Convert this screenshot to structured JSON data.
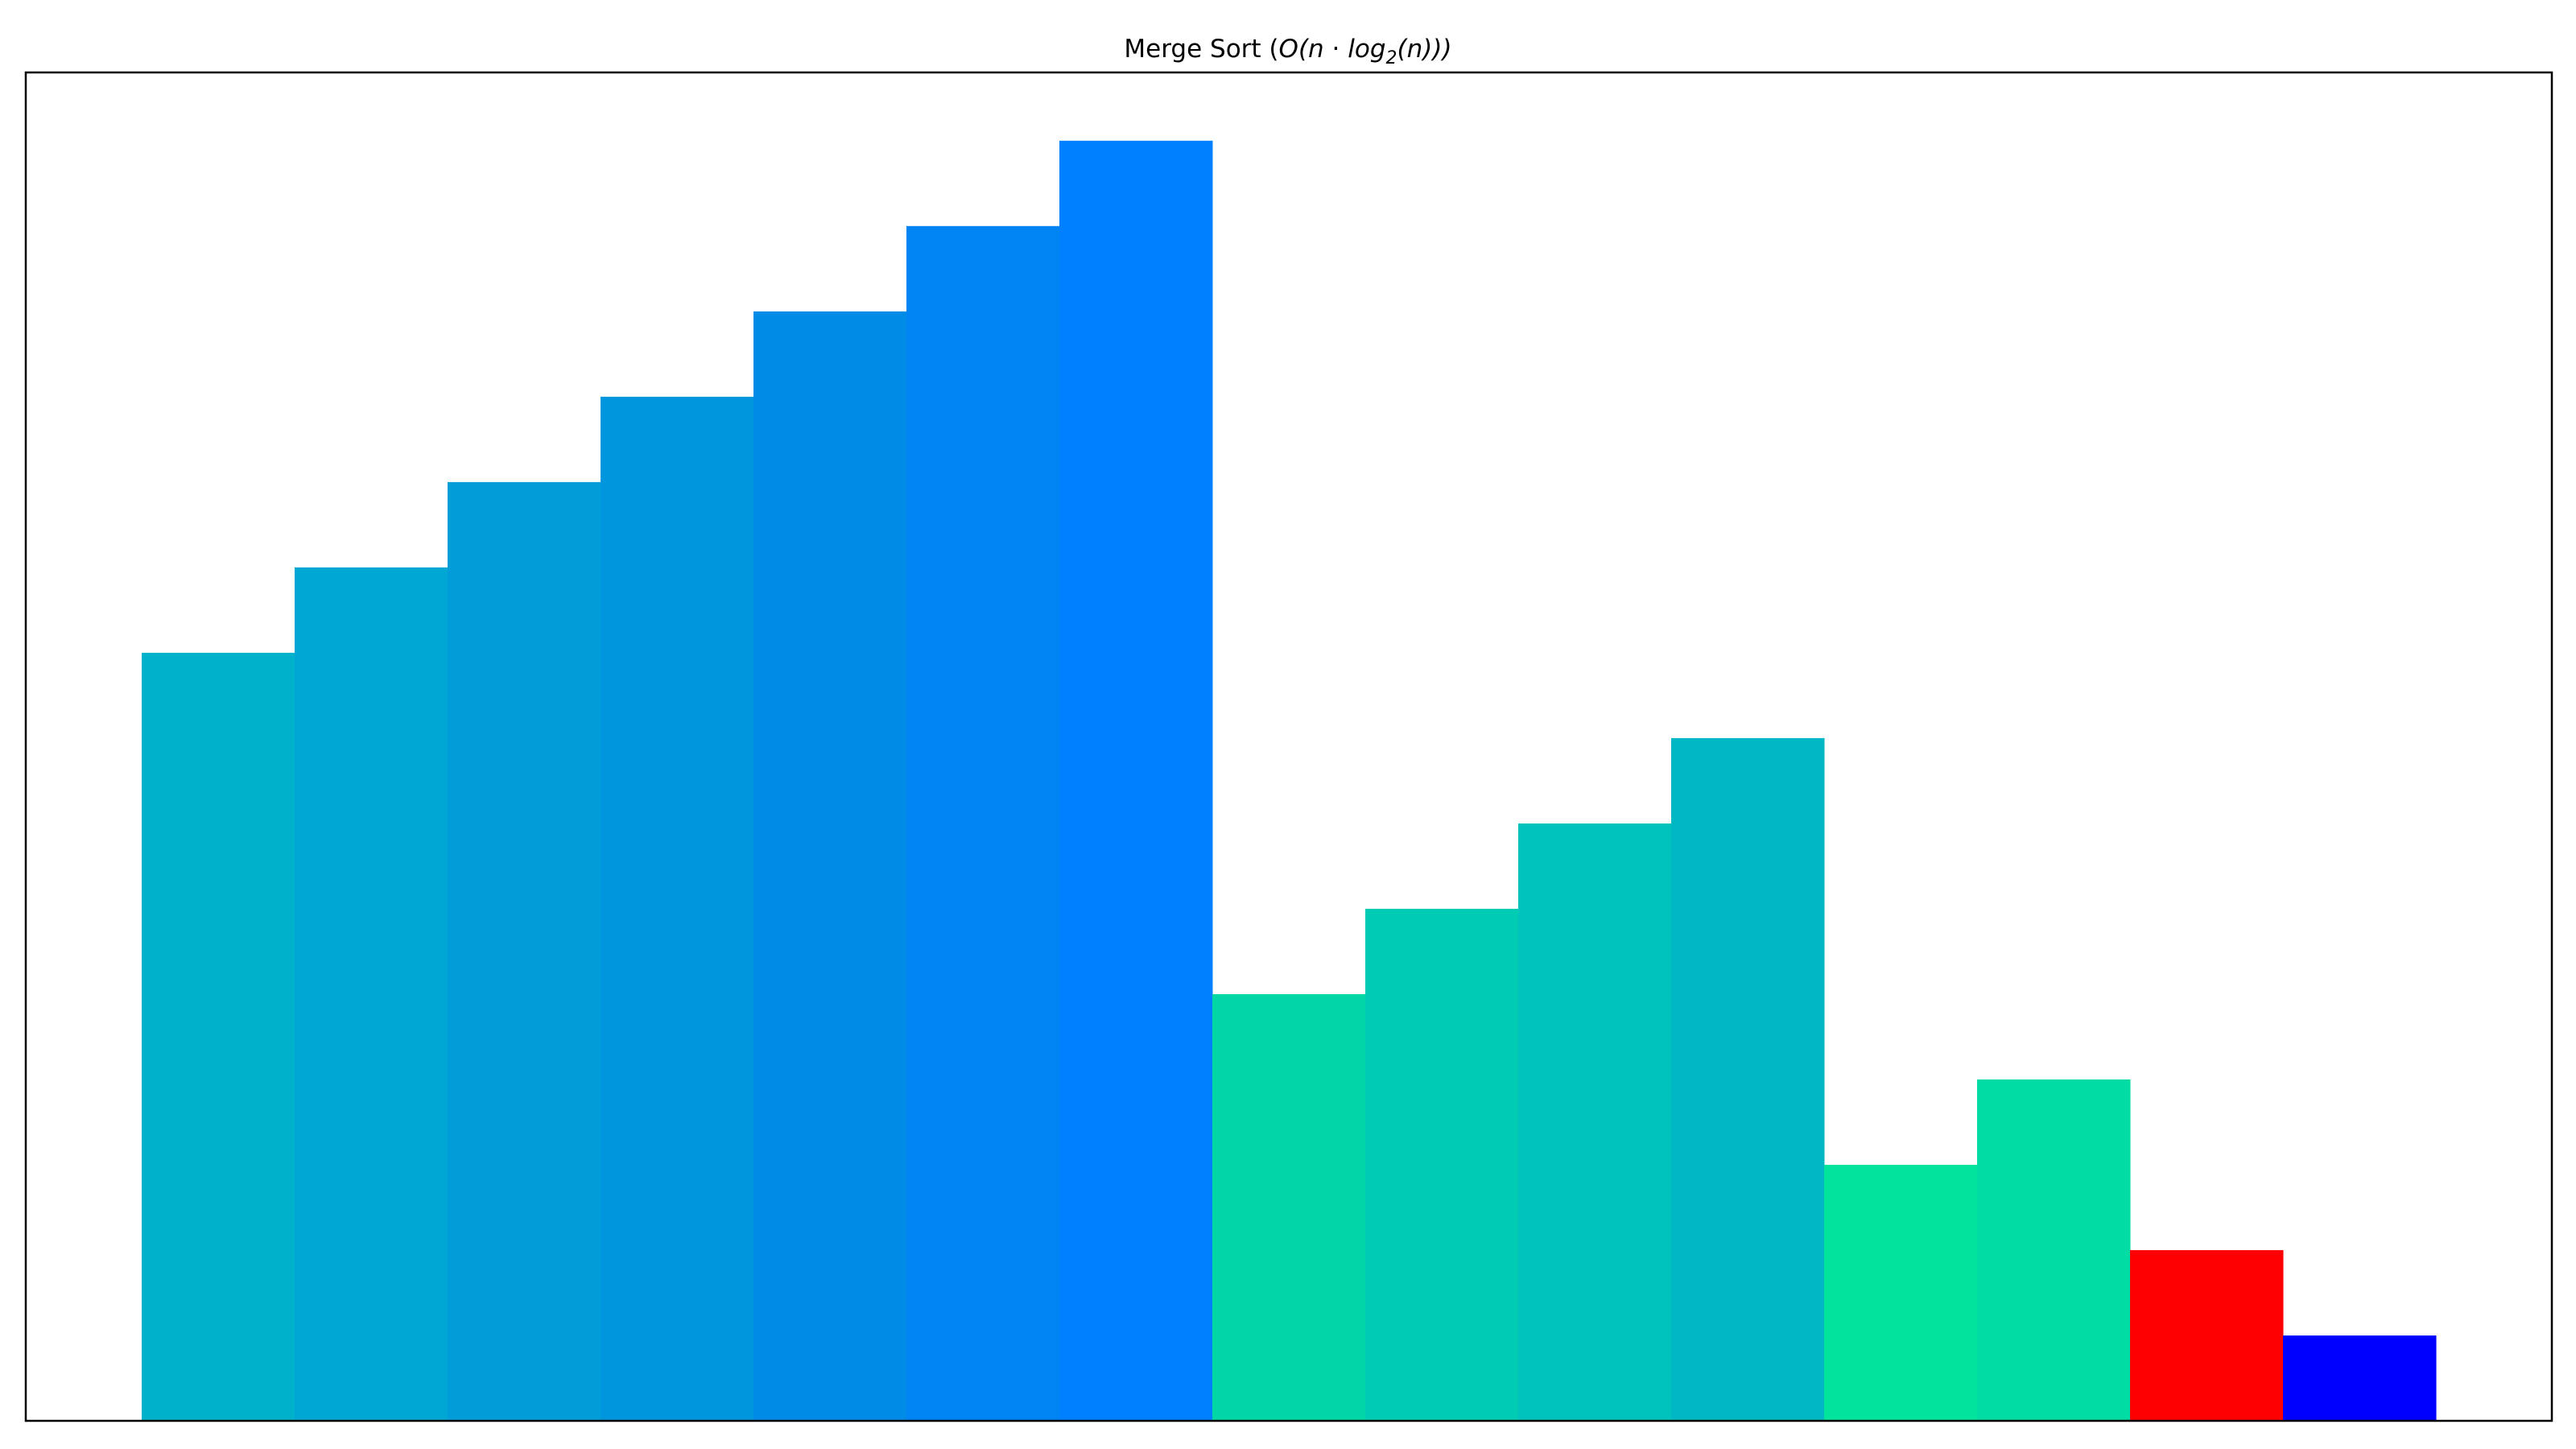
{
  "chart_data": {
    "type": "bar",
    "title": {
      "prefix": "Merge Sort (",
      "O": "O",
      "open1": "(",
      "n1": "n",
      "dot": " · ",
      "log": "log",
      "base": "2",
      "open2": "(",
      "n2": "n",
      "close": ")))"
    },
    "xlabel": "",
    "ylabel": "",
    "axes_visible": false,
    "grid": false,
    "ylim": [
      0,
      15.8
    ],
    "values": [
      9,
      10,
      11,
      12,
      13,
      14,
      15,
      5,
      6,
      7,
      8,
      3,
      4,
      2,
      1
    ],
    "colors": [
      "#00b1cc",
      "#00a7d5",
      "#009dd8",
      "#0096de",
      "#008ce6",
      "#0083f3",
      "#0080ff",
      "#00d6a6",
      "#00ccb3",
      "#00c3bd",
      "#00b8c4",
      "#00e59b",
      "#00dca4",
      "#ff0000",
      "#0000ff"
    ]
  }
}
